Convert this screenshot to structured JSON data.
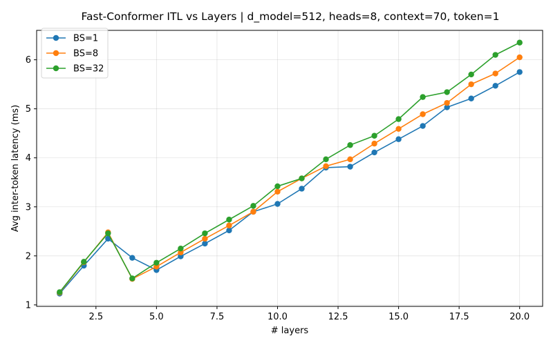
{
  "chart_data": {
    "type": "line",
    "title": "Fast-Conformer ITL vs Layers | d_model=512, heads=8, context=70, token=1",
    "xlabel": "# layers",
    "ylabel": "Avg inter-token latency (ms)",
    "xlim": [
      0.05,
      20.95
    ],
    "ylim": [
      0.97,
      6.6
    ],
    "xticks": [
      2.5,
      5.0,
      7.5,
      10.0,
      12.5,
      15.0,
      17.5,
      20.0
    ],
    "xtick_labels": [
      "2.5",
      "5.0",
      "7.5",
      "10.0",
      "12.5",
      "15.0",
      "17.5",
      "20.0"
    ],
    "yticks": [
      1,
      2,
      3,
      4,
      5,
      6
    ],
    "ytick_labels": [
      "1",
      "2",
      "3",
      "4",
      "5",
      "6"
    ],
    "grid": true,
    "legend_position": "top-left",
    "x": [
      1,
      2,
      3,
      4,
      5,
      6,
      7,
      8,
      9,
      10,
      11,
      12,
      13,
      14,
      15,
      16,
      17,
      18,
      19,
      20
    ],
    "series": [
      {
        "name": "BS=1",
        "color": "#1f77b4",
        "values": [
          1.23,
          1.8,
          2.35,
          1.96,
          1.71,
          1.99,
          2.25,
          2.52,
          2.9,
          3.06,
          3.37,
          3.8,
          3.82,
          4.11,
          4.38,
          4.65,
          5.03,
          5.21,
          5.47,
          5.75
        ]
      },
      {
        "name": "BS=8",
        "color": "#ff7f0e",
        "values": [
          1.25,
          1.87,
          2.48,
          1.53,
          1.78,
          2.07,
          2.35,
          2.62,
          2.9,
          3.31,
          3.58,
          3.83,
          3.97,
          4.29,
          4.59,
          4.89,
          5.12,
          5.5,
          5.72,
          6.05
        ]
      },
      {
        "name": "BS=32",
        "color": "#2ca02c",
        "values": [
          1.26,
          1.88,
          2.46,
          1.54,
          1.86,
          2.15,
          2.46,
          2.74,
          3.02,
          3.42,
          3.58,
          3.97,
          4.26,
          4.45,
          4.79,
          5.24,
          5.34,
          5.7,
          6.1,
          6.35
        ]
      }
    ]
  }
}
